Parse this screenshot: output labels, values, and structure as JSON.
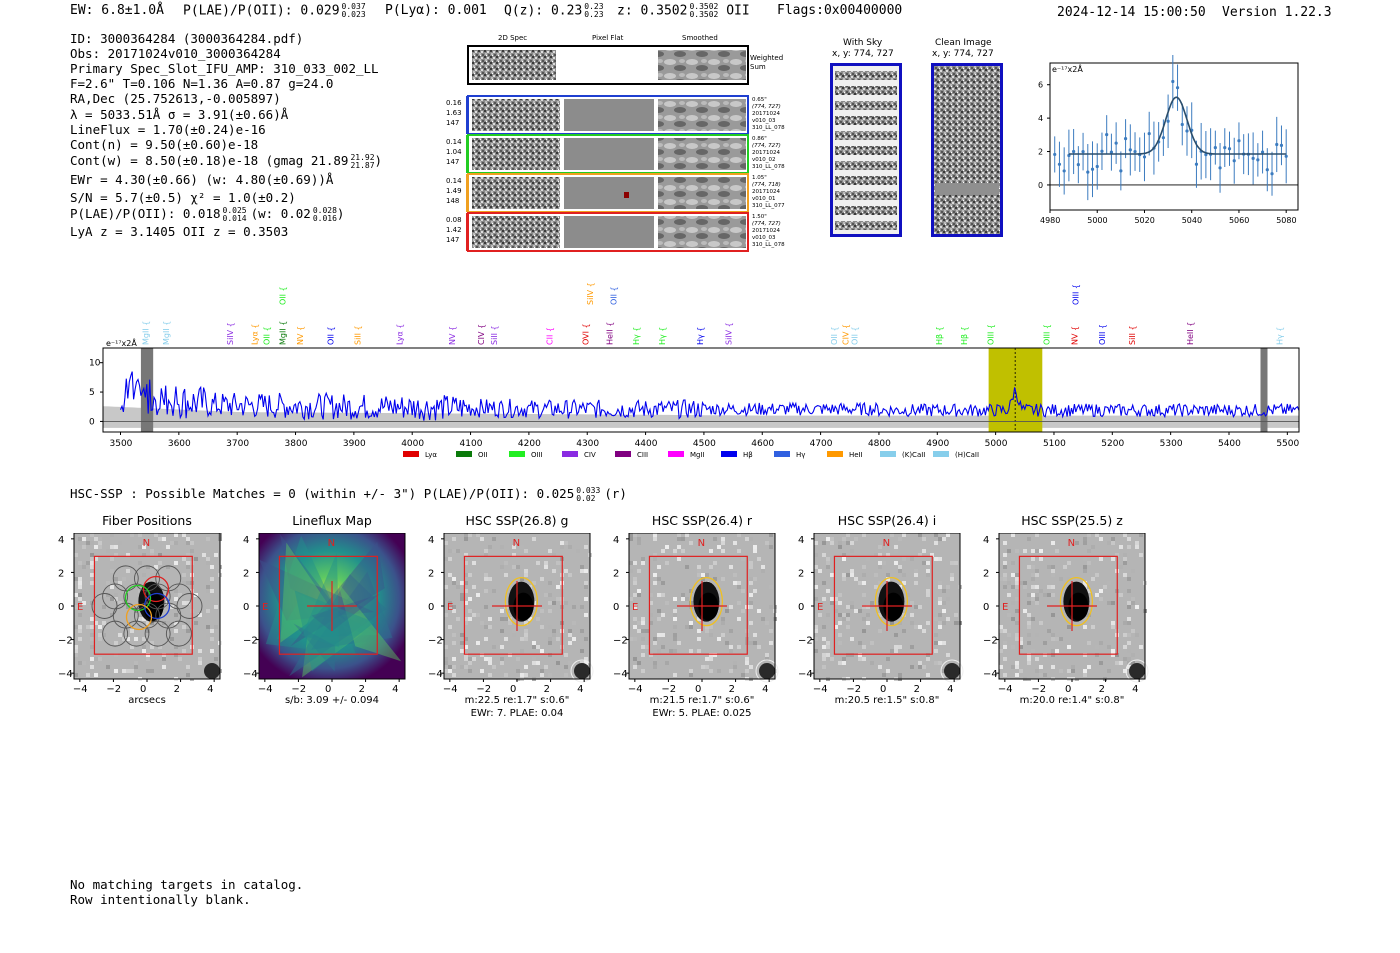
{
  "header": {
    "ew": "EW: 6.8±1.0Å",
    "plae_label": "P(LAE)/P(OII): 0.029",
    "plae_sup": "0.037",
    "plae_sub": "0.023",
    "plya": "P(Lyα): 0.001",
    "q_label": "Q(z): 0.23",
    "q_sup": "0.23",
    "q_sub": "0.23",
    "z_label": "z: 0.3502",
    "z_sup": "0.3502",
    "z_sub": "0.3502",
    "z_line": "OII",
    "flags": "Flags:0x00400000",
    "timestamp": "2024-12-14 15:00:50",
    "version": "Version 1.22.3"
  },
  "info": {
    "id": "ID: 3000364284 (3000364284.pdf)",
    "obs": "Obs: 20171024v010_3000364284",
    "primary": "Primary Spec_Slot_IFU_AMP: 310_033_002_LL",
    "params": "F=2.6\"  T=0.106  N=1.36  A=0.87  g=24.0",
    "radec": "RA,Dec (25.752613,-0.005897)",
    "lambda": "λ = 5033.51Å   σ = 3.91(±0.66)Å",
    "lineflux": "LineFlux = 1.70(±0.24)e-16",
    "contn": "Cont(n) = 9.50(±0.60)e-18",
    "contw": "Cont(w) = 8.50(±0.18)e-18 (gmag 21.89",
    "contw_sup": "21.92",
    "contw_sub": "21.87",
    "contw_close": ")",
    "ewr": "EWr = 4.30(±0.66) (w: 4.80(±0.69))Å",
    "sn": "S/N = 5.7(±0.5)  χ² = 1.0(±0.2)",
    "plae2": "P(LAE)/P(OII): 0.018",
    "plae2_sup": "0.025",
    "plae2_sub": "0.014",
    "plae2_w": "(w: 0.02",
    "plae2_wsup": "0.028",
    "plae2_wsub": "0.016",
    "plae2_close": ")",
    "lya": "LyA z = 3.1405   OII z = 0.3503"
  },
  "cutouts": {
    "col_2d": "2D Spec",
    "col_flat": "Pixel Flat",
    "col_smooth": "Smoothed",
    "weighted": "Weighted Sum",
    "rows": [
      {
        "w1": "0.16",
        "w2": "1.63",
        "w3": "147",
        "d1": "0.65\"",
        "d2": "(774, 727)",
        "d3": "20171024",
        "d4": "v010_03",
        "d5": "310_LL_078",
        "color": "#1f3fd0"
      },
      {
        "w1": "0.14",
        "w2": "1.04",
        "w3": "147",
        "d1": "0.86\"",
        "d2": "(774, 727)",
        "d3": "20171024",
        "d4": "v010_02",
        "d5": "310_LL_078",
        "color": "#22cc22"
      },
      {
        "w1": "0.14",
        "w2": "1.49",
        "w3": "148",
        "d1": "1.05\"",
        "d2": "(774, 718)",
        "d3": "20171024",
        "d4": "v010_01",
        "d5": "310_LL_077",
        "color": "#f0a020"
      },
      {
        "w1": "0.08",
        "w2": "1.42",
        "w3": "147",
        "d1": "1.50\"",
        "d2": "(774, 727)",
        "d3": "20171024",
        "d4": "v010_03",
        "d5": "310_LL_078",
        "color": "#e02020"
      }
    ]
  },
  "sky": {
    "with_sky_title": "With Sky",
    "with_sky_xy": "x, y: 774, 727",
    "clean_title": "Clean Image",
    "clean_xy": "x, y: 774, 727"
  },
  "zoom_plot": {
    "unit": "e⁻¹⁷x2Å",
    "x_ticks": [
      "4980",
      "5000",
      "5020",
      "5040",
      "5060",
      "5080"
    ],
    "y_ticks": [
      "0",
      "2",
      "4",
      "6"
    ]
  },
  "spectrum": {
    "unit": "e⁻¹⁷x2Å",
    "x_ticks": [
      "3500",
      "3600",
      "3700",
      "3800",
      "3900",
      "4000",
      "4100",
      "4200",
      "4300",
      "4400",
      "4500",
      "4600",
      "4700",
      "4800",
      "4900",
      "5000",
      "5100",
      "5200",
      "5300",
      "5400",
      "5500"
    ],
    "y_ticks": [
      "0",
      "5",
      "10"
    ],
    "legend": [
      {
        "label": "Lyα",
        "color": "#e00000"
      },
      {
        "label": "OII",
        "color": "#0a7a0a"
      },
      {
        "label": "OIII",
        "color": "#22ee22"
      },
      {
        "label": "CIV",
        "color": "#8a2be2"
      },
      {
        "label": "CIII",
        "color": "#800080"
      },
      {
        "label": "MgII",
        "color": "#ff00ff"
      },
      {
        "label": "Hβ",
        "color": "#0000ee"
      },
      {
        "label": "Hγ",
        "color": "#3060e0"
      },
      {
        "label": "HeII",
        "color": "#ff9900"
      },
      {
        "label": "(K)CaII",
        "color": "#87ceeb"
      },
      {
        "label": "(H)CaII",
        "color": "#87ceeb"
      }
    ],
    "lines": [
      {
        "t": "MgII",
        "w": 3543,
        "c": "#87ceeb",
        "row": 1
      },
      {
        "t": "MgII",
        "w": 3578,
        "c": "#87ceeb",
        "row": 1
      },
      {
        "t": "SiIV",
        "w": 3688,
        "c": "#8a2be2",
        "row": 1
      },
      {
        "t": "Lyα",
        "w": 3730,
        "c": "#ff9900",
        "row": 1
      },
      {
        "t": "OII",
        "w": 3750,
        "c": "#22ee22",
        "row": 1
      },
      {
        "t": "MgII",
        "w": 3778,
        "c": "#0a7a0a",
        "row": 1
      },
      {
        "t": "NV",
        "w": 3808,
        "c": "#ff9900",
        "row": 1
      },
      {
        "t": "OII",
        "w": 3860,
        "c": "#0000ee",
        "row": 1
      },
      {
        "t": "SiII",
        "w": 3906,
        "c": "#ff9900",
        "row": 1
      },
      {
        "t": "Lyα",
        "w": 3978,
        "c": "#8a2be2",
        "row": 1
      },
      {
        "t": "NV",
        "w": 4068,
        "c": "#8a2be2",
        "row": 1
      },
      {
        "t": "CIV",
        "w": 4118,
        "c": "#800080",
        "row": 1
      },
      {
        "t": "SiII",
        "w": 4140,
        "c": "#8a2be2",
        "row": 1
      },
      {
        "t": "CII",
        "w": 4235,
        "c": "#ff00ff",
        "row": 1
      },
      {
        "t": "OVI",
        "w": 4297,
        "c": "#e00000",
        "row": 1
      },
      {
        "t": "HeII",
        "w": 4338,
        "c": "#800080",
        "row": 1
      },
      {
        "t": "Hγ",
        "w": 4384,
        "c": "#22ee22",
        "row": 1
      },
      {
        "t": "Hγ",
        "w": 4428,
        "c": "#22ee22",
        "row": 1
      },
      {
        "t": "Hγ",
        "w": 4493,
        "c": "#0000ee",
        "row": 1
      },
      {
        "t": "SiIV",
        "w": 4542,
        "c": "#8a2be2",
        "row": 1
      },
      {
        "t": "OII",
        "w": 4723,
        "c": "#87ceeb",
        "row": 1
      },
      {
        "t": "CIV",
        "w": 4743,
        "c": "#ff9900",
        "row": 1
      },
      {
        "t": "OII",
        "w": 4758,
        "c": "#87ceeb",
        "row": 1
      },
      {
        "t": "Hβ",
        "w": 4903,
        "c": "#22ee22",
        "row": 1
      },
      {
        "t": "Hβ",
        "w": 4946,
        "c": "#22ee22",
        "row": 1
      },
      {
        "t": "OIII",
        "w": 4991,
        "c": "#22ee22",
        "row": 1
      },
      {
        "t": "OIII",
        "w": 5087,
        "c": "#22ee22",
        "row": 1
      },
      {
        "t": "NV",
        "w": 5135,
        "c": "#e00000",
        "row": 1
      },
      {
        "t": "OIII",
        "w": 5182,
        "c": "#0000ee",
        "row": 1
      },
      {
        "t": "SiII",
        "w": 5234,
        "c": "#e00000",
        "row": 1
      },
      {
        "t": "HeII",
        "w": 5333,
        "c": "#800080",
        "row": 1
      },
      {
        "t": "Hγ",
        "w": 5487,
        "c": "#87ceeb",
        "row": 1
      },
      {
        "t": "OII",
        "w": 3778,
        "c": "#22ee22",
        "row": 0
      },
      {
        "t": "SiIV",
        "w": 4305,
        "c": "#ff9900",
        "row": 0
      },
      {
        "t": "OII",
        "w": 4345,
        "c": "#3060e0",
        "row": 0
      },
      {
        "t": "OIII",
        "w": 5137,
        "c": "#0000ee",
        "row": 0
      }
    ]
  },
  "hsc": {
    "summary": "HSC-SSP : Possible Matches = 0 (within +/- 3\")  P(LAE)/P(OII): 0.025",
    "summary_sup": "0.033",
    "summary_sub": "0.02",
    "summary_band": "(r)",
    "axis_ticks": [
      "−4",
      "−2",
      "0",
      "2",
      "4"
    ],
    "panels": [
      {
        "title": "Fiber Positions",
        "foot1": "arcsecs",
        "foot2": ""
      },
      {
        "title": "Lineflux Map",
        "foot1": "s/b: 3.09 +/- 0.094",
        "foot2": ""
      },
      {
        "title": "HSC SSP(26.8) g",
        "foot1": "m:22.5  re:1.7\"  s:0.6\"",
        "foot2": "EWr: 7. PLAE: 0.04"
      },
      {
        "title": "HSC SSP(26.4) r",
        "foot1": "m:21.5  re:1.7\"  s:0.6\"",
        "foot2": "EWr: 5. PLAE: 0.025"
      },
      {
        "title": "HSC SSP(26.4) i",
        "foot1": "m:20.5  re:1.5\"  s:0.8\"",
        "foot2": ""
      },
      {
        "title": "HSC SSP(25.5) z",
        "foot1": "m:20.0  re:1.4\"  s:0.8\"",
        "foot2": ""
      }
    ],
    "north": "N",
    "east": "E"
  },
  "footer": {
    "line1": "No matching targets in catalog.",
    "line2": "Row intentionally blank."
  }
}
